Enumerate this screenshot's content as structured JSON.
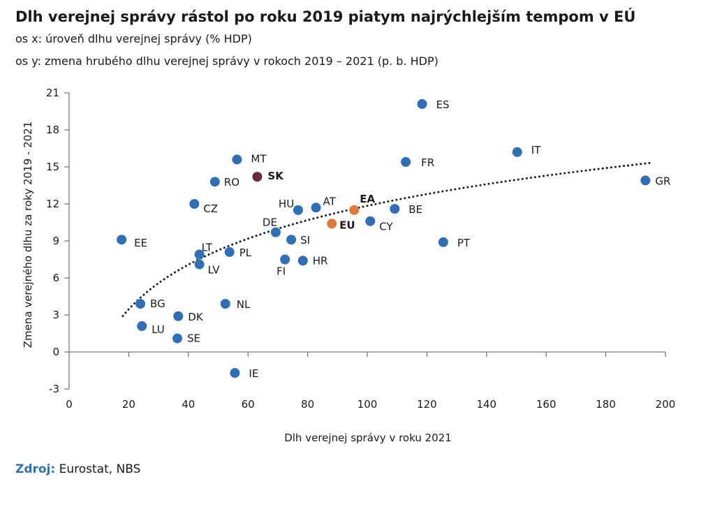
{
  "header": {
    "title": "Dlh verejnej správy rástol po roku 2019 piatym najrýchlejším tempom v EÚ",
    "subtitle_x": "os x: úroveň dlhu verejnej správy (% HDP)",
    "subtitle_y": "os y: zmena hrubého dlhu verejnej správy v rokoch 2019 – 2021 (p. b. HDP)"
  },
  "source": {
    "label": "Zdroj:",
    "text": "Eurostat, NBS"
  },
  "colors": {
    "default": "#2e6fb8",
    "sk": "#6e2740",
    "eu": "#e07a3a",
    "trend": "#1a1a1a"
  },
  "chart_data": {
    "type": "scatter",
    "xlabel": "Dlh verejnej správy v roku 2021",
    "ylabel": "Zmena verejného dlhu za roky 2019 - 2021",
    "xlim": [
      0,
      200
    ],
    "ylim": [
      -3,
      21
    ],
    "xticks": [
      "0",
      "20",
      "40",
      "60",
      "80",
      "100",
      "120",
      "140",
      "160",
      "180",
      "200"
    ],
    "yticks": [
      "-3",
      "0",
      "3",
      "6",
      "9",
      "12",
      "15",
      "18",
      "21"
    ],
    "grid": false,
    "points": [
      {
        "label": "ES",
        "x": 118.4,
        "y": 20.1,
        "group": "default"
      },
      {
        "label": "IT",
        "x": 150.3,
        "y": 16.2,
        "group": "default"
      },
      {
        "label": "MT",
        "x": 56.3,
        "y": 15.6,
        "group": "default"
      },
      {
        "label": "FR",
        "x": 112.9,
        "y": 15.4,
        "group": "default"
      },
      {
        "label": "SK",
        "x": 63.1,
        "y": 14.2,
        "group": "sk"
      },
      {
        "label": "GR",
        "x": 193.3,
        "y": 13.9,
        "group": "default"
      },
      {
        "label": "RO",
        "x": 48.9,
        "y": 13.8,
        "group": "default"
      },
      {
        "label": "CZ",
        "x": 42.0,
        "y": 12.0,
        "group": "default"
      },
      {
        "label": "HU",
        "x": 76.8,
        "y": 11.5,
        "group": "default"
      },
      {
        "label": "AT",
        "x": 82.8,
        "y": 11.7,
        "group": "default"
      },
      {
        "label": "EA",
        "x": 95.6,
        "y": 11.5,
        "group": "eu"
      },
      {
        "label": "BE",
        "x": 109.2,
        "y": 11.6,
        "group": "default"
      },
      {
        "label": "EU",
        "x": 88.1,
        "y": 10.4,
        "group": "eu"
      },
      {
        "label": "CY",
        "x": 101.0,
        "y": 10.6,
        "group": "default"
      },
      {
        "label": "DE",
        "x": 69.3,
        "y": 9.7,
        "group": "default"
      },
      {
        "label": "SI",
        "x": 74.5,
        "y": 9.1,
        "group": "default"
      },
      {
        "label": "EE",
        "x": 17.6,
        "y": 9.1,
        "group": "default"
      },
      {
        "label": "PT",
        "x": 125.5,
        "y": 8.9,
        "group": "default"
      },
      {
        "label": "LT",
        "x": 43.7,
        "y": 7.9,
        "group": "default"
      },
      {
        "label": "PL",
        "x": 53.8,
        "y": 8.1,
        "group": "default"
      },
      {
        "label": "FI",
        "x": 72.4,
        "y": 7.5,
        "group": "default"
      },
      {
        "label": "HR",
        "x": 78.4,
        "y": 7.4,
        "group": "default"
      },
      {
        "label": "LV",
        "x": 43.7,
        "y": 7.1,
        "group": "default"
      },
      {
        "label": "BG",
        "x": 23.9,
        "y": 3.9,
        "group": "default"
      },
      {
        "label": "NL",
        "x": 52.4,
        "y": 3.9,
        "group": "default"
      },
      {
        "label": "DK",
        "x": 36.6,
        "y": 2.9,
        "group": "default"
      },
      {
        "label": "LU",
        "x": 24.4,
        "y": 2.1,
        "group": "default"
      },
      {
        "label": "SE",
        "x": 36.3,
        "y": 1.1,
        "group": "default"
      },
      {
        "label": "IE",
        "x": 55.6,
        "y": -1.7,
        "group": "default"
      }
    ],
    "trendline": {
      "type": "logarithmic",
      "x_range": [
        18,
        195
      ]
    }
  }
}
